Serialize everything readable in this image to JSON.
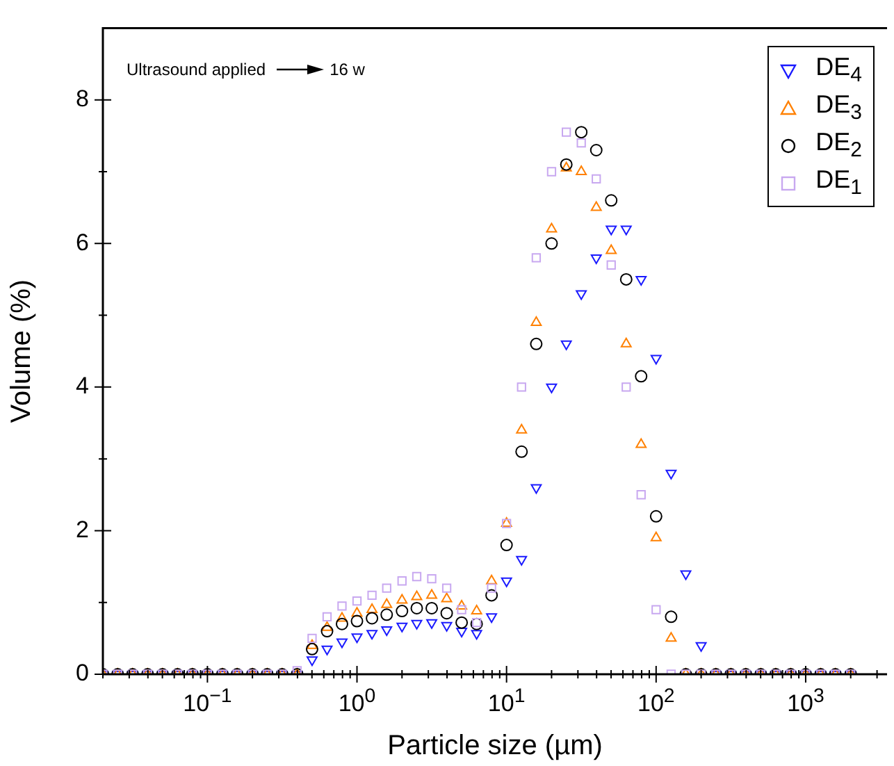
{
  "chart_data": {
    "type": "scatter",
    "xlabel": "Particle size (µm)",
    "ylabel": "Volume (%)",
    "annotations": [
      "Ultrasound applied",
      "16 w"
    ],
    "log": "x",
    "grid": false,
    "legend": "top right",
    "xlim": [
      0.02,
      3500
    ],
    "ylim": [
      0,
      9
    ],
    "xticks": [
      {
        "value": 0.02,
        "label": null
      },
      {
        "value": 0.03,
        "label": null
      },
      {
        "value": 0.04,
        "label": null
      },
      {
        "value": 0.05,
        "label": null
      },
      {
        "value": 0.06,
        "label": null
      },
      {
        "value": 0.07,
        "label": null
      },
      {
        "value": 0.08,
        "label": null
      },
      {
        "value": 0.09,
        "label": null
      },
      {
        "value": 0.1,
        "label": "10$^{−1}$"
      },
      {
        "value": 0.2,
        "label": null
      },
      {
        "value": 0.3,
        "label": null
      },
      {
        "value": 0.4,
        "label": null
      },
      {
        "value": 0.5,
        "label": null
      },
      {
        "value": 0.6,
        "label": null
      },
      {
        "value": 0.7,
        "label": null
      },
      {
        "value": 0.8,
        "label": null
      },
      {
        "value": 0.9,
        "label": null
      },
      {
        "value": 1,
        "label": "10$^{0}$"
      },
      {
        "value": 2,
        "label": null
      },
      {
        "value": 3,
        "label": null
      },
      {
        "value": 4,
        "label": null
      },
      {
        "value": 5,
        "label": null
      },
      {
        "value": 6,
        "label": null
      },
      {
        "value": 7,
        "label": null
      },
      {
        "value": 8,
        "label": null
      },
      {
        "value": 9,
        "label": null
      },
      {
        "value": 10,
        "label": "10$^{1}$"
      },
      {
        "value": 20,
        "label": null
      },
      {
        "value": 30,
        "label": null
      },
      {
        "value": 40,
        "label": null
      },
      {
        "value": 50,
        "label": null
      },
      {
        "value": 60,
        "label": null
      },
      {
        "value": 70,
        "label": null
      },
      {
        "value": 80,
        "label": null
      },
      {
        "value": 90,
        "label": null
      },
      {
        "value": 100,
        "label": "10$^{2}$"
      },
      {
        "value": 200,
        "label": null
      },
      {
        "value": 300,
        "label": null
      },
      {
        "value": 400,
        "label": null
      },
      {
        "value": 500,
        "label": null
      },
      {
        "value": 600,
        "label": null
      },
      {
        "value": 700,
        "label": null
      },
      {
        "value": 800,
        "label": null
      },
      {
        "value": 900,
        "label": null
      },
      {
        "value": 1000,
        "label": "10$^{3}$"
      },
      {
        "value": 2000,
        "label": null
      },
      {
        "value": 3000,
        "label": null
      }
    ],
    "yticks": [
      0,
      {
        "value": 1,
        "label": null
      },
      2,
      {
        "value": 3,
        "label": null
      },
      4,
      {
        "value": 5,
        "label": null
      },
      6,
      {
        "value": 7,
        "label": null
      },
      8
    ],
    "x": [
      0.02,
      0.0251,
      0.0316,
      0.0398,
      0.0501,
      0.0631,
      0.0794,
      0.1,
      0.126,
      0.158,
      0.2,
      0.251,
      0.316,
      0.398,
      0.501,
      0.631,
      0.794,
      1,
      1.26,
      1.58,
      2,
      2.51,
      3.16,
      3.98,
      5.01,
      6.31,
      7.94,
      10,
      12.6,
      15.8,
      20,
      25.1,
      31.6,
      39.8,
      50.1,
      63.1,
      79.4,
      100,
      126,
      158,
      200,
      251,
      316,
      398,
      501,
      631,
      794,
      1000,
      1260,
      1580,
      2000
    ],
    "series": [
      {
        "name": "DE$_{4}$",
        "color": "#1a1aff",
        "marker": "triangle-down",
        "values": [
          0,
          0,
          0,
          0,
          0,
          0,
          0,
          0,
          0,
          0,
          0,
          0,
          0,
          0,
          0.2,
          0.35,
          0.45,
          0.52,
          0.57,
          0.62,
          0.67,
          0.71,
          0.72,
          0.68,
          0.6,
          0.57,
          0.8,
          1.3,
          1.6,
          2.6,
          4.0,
          4.6,
          5.3,
          5.8,
          6.2,
          6.2,
          5.5,
          4.4,
          2.8,
          1.4,
          0.4,
          0,
          0,
          0,
          0,
          0,
          0,
          0,
          0,
          0,
          0
        ]
      },
      {
        "name": "DE$_{3}$",
        "color": "#ff8000",
        "marker": "triangle",
        "values": [
          0,
          0,
          0,
          0,
          0,
          0,
          0,
          0,
          0,
          0,
          0,
          0,
          0,
          0,
          0.4,
          0.65,
          0.78,
          0.85,
          0.9,
          0.97,
          1.03,
          1.08,
          1.1,
          1.05,
          0.95,
          0.88,
          1.3,
          2.1,
          3.4,
          4.9,
          6.2,
          7.05,
          7.0,
          6.5,
          5.9,
          4.6,
          3.2,
          1.9,
          0.5,
          0,
          0,
          0,
          0,
          0,
          0,
          0,
          0,
          0,
          0,
          0,
          0
        ]
      },
      {
        "name": "DE$_{2}$",
        "color": "#000000",
        "marker": "circle",
        "values": [
          0,
          0,
          0,
          0,
          0,
          0,
          0,
          0,
          0,
          0,
          0,
          0,
          0,
          0,
          0.35,
          0.6,
          0.7,
          0.74,
          0.78,
          0.83,
          0.88,
          0.92,
          0.92,
          0.85,
          0.72,
          0.7,
          1.1,
          1.8,
          3.1,
          4.6,
          6.0,
          7.1,
          7.55,
          7.3,
          6.6,
          5.5,
          4.15,
          2.2,
          0.8,
          0,
          0,
          0,
          0,
          0,
          0,
          0,
          0,
          0,
          0,
          0,
          0
        ]
      },
      {
        "name": "DE$_{1}$",
        "color": "#c8a8f0",
        "marker": "square",
        "values": [
          0,
          0,
          0,
          0,
          0,
          0,
          0,
          0,
          0,
          0,
          0,
          0,
          0,
          0.05,
          0.5,
          0.8,
          0.95,
          1.02,
          1.1,
          1.2,
          1.3,
          1.36,
          1.33,
          1.2,
          0.9,
          0.72,
          1.2,
          2.1,
          4.0,
          5.8,
          7.0,
          7.55,
          7.4,
          6.9,
          5.7,
          4.0,
          2.5,
          0.9,
          0,
          0,
          0,
          0,
          0,
          0,
          0,
          0,
          0,
          0,
          0,
          0,
          0
        ]
      }
    ]
  }
}
